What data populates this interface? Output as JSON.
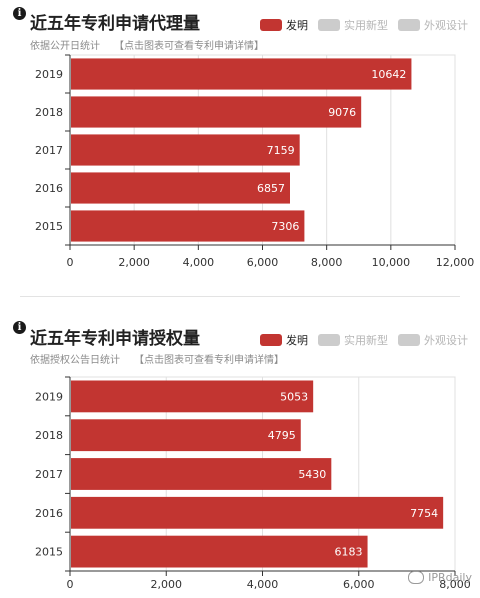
{
  "panels": [
    {
      "title": "近五年专利申请代理量",
      "subtitle": "依据公开日统计",
      "link_hint": "【点击图表可查看专利申请详情】",
      "legend": [
        {
          "label": "发明",
          "active": true
        },
        {
          "label": "实用新型",
          "active": false
        },
        {
          "label": "外观设计",
          "active": false
        }
      ]
    },
    {
      "title": "近五年专利申请授权量",
      "subtitle": "依据授权公告日统计",
      "link_hint": "【点击图表可查看专利申请详情】",
      "legend": [
        {
          "label": "发明",
          "active": true
        },
        {
          "label": "实用新型",
          "active": false
        },
        {
          "label": "外观设计",
          "active": false
        }
      ]
    }
  ],
  "watermark": "IPRdaily",
  "colors": {
    "bar": "#c23531",
    "inactive": "#cccccc",
    "grid": "#e0e0e0",
    "axis": "#333333"
  },
  "chart_data": [
    {
      "type": "bar",
      "orientation": "horizontal",
      "title": "近五年专利申请代理量",
      "categories": [
        "2019",
        "2018",
        "2017",
        "2016",
        "2015"
      ],
      "series": [
        {
          "name": "发明",
          "values": [
            10642,
            9076,
            7159,
            6857,
            7306
          ]
        }
      ],
      "xlim": [
        0,
        12000
      ],
      "xticks": [
        "0",
        "2,000",
        "4,000",
        "6,000",
        "8,000",
        "10,000",
        "12,000"
      ],
      "grid": true,
      "legend_position": "top-right"
    },
    {
      "type": "bar",
      "orientation": "horizontal",
      "title": "近五年专利申请授权量",
      "categories": [
        "2019",
        "2018",
        "2017",
        "2016",
        "2015"
      ],
      "series": [
        {
          "name": "发明",
          "values": [
            5053,
            4795,
            5430,
            7754,
            6183
          ]
        }
      ],
      "xlim": [
        0,
        8000
      ],
      "xticks": [
        "0",
        "2,000",
        "4,000",
        "6,000",
        "8,000"
      ],
      "grid": true,
      "legend_position": "top-right"
    }
  ]
}
